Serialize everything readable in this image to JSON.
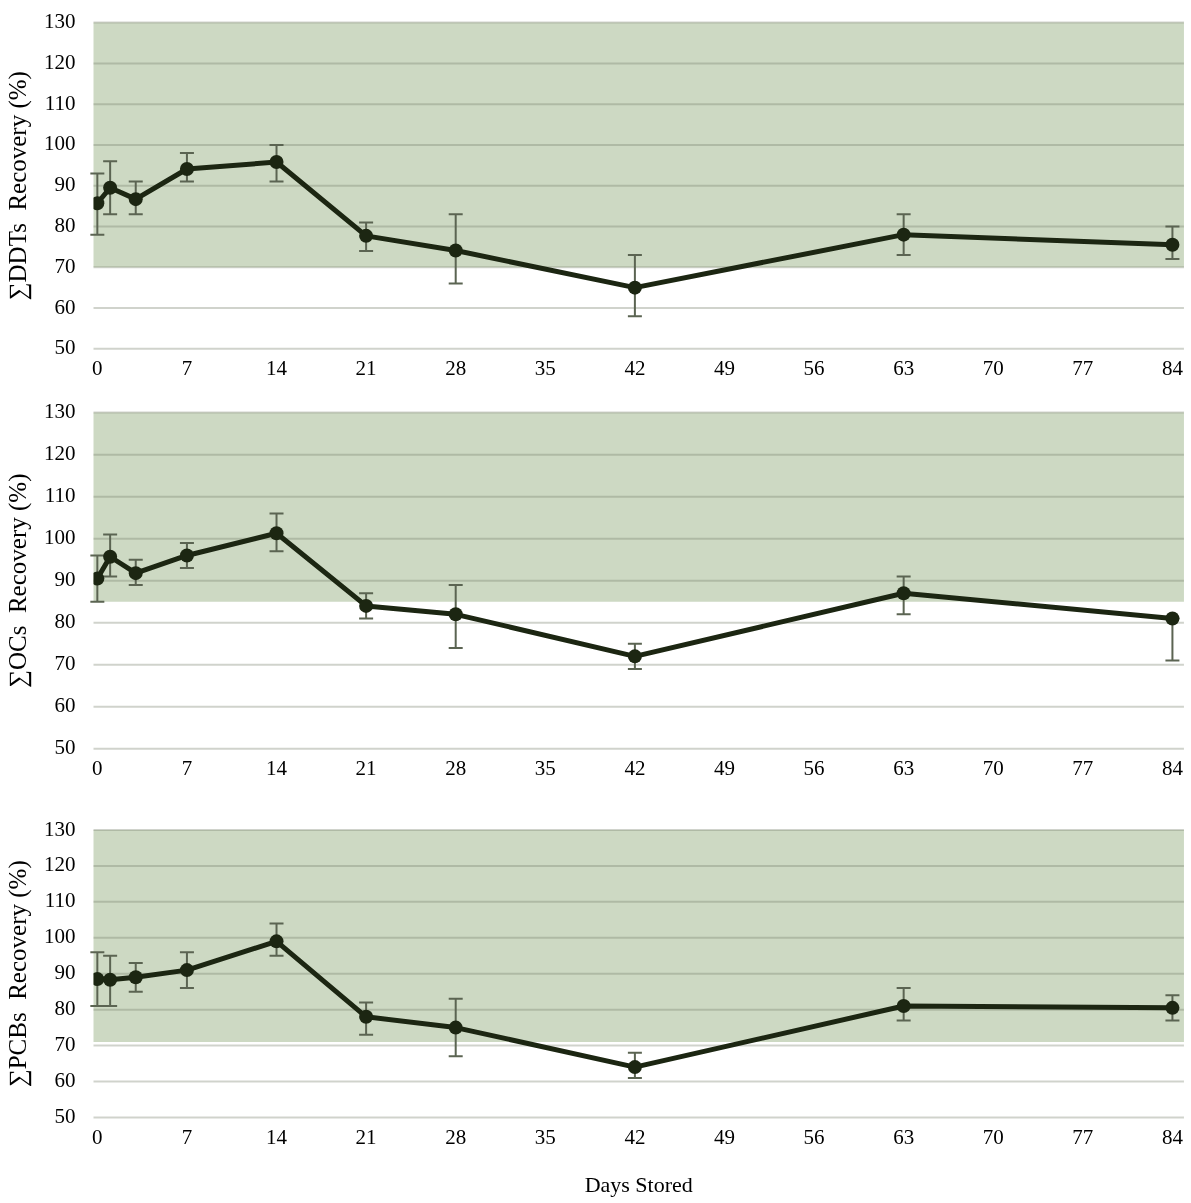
{
  "chart_data": [
    {
      "type": "line",
      "ylabel": "∑DDTs  Recovery (%)",
      "x": [
        0,
        1,
        3,
        7,
        14,
        21,
        28,
        42,
        63,
        84
      ],
      "xlim": [
        -0.3,
        84.9
      ],
      "xticks": [
        0,
        7,
        14,
        21,
        28,
        35,
        42,
        49,
        56,
        63,
        70,
        77,
        84
      ],
      "ylim": [
        50,
        130
      ],
      "yticks": [
        50,
        60,
        70,
        80,
        90,
        100,
        110,
        120,
        130
      ],
      "grid": "y",
      "marker": "circle",
      "bands": [
        {
          "axis": "y",
          "from": 70,
          "to": 130,
          "color": "#cdd9c3"
        }
      ],
      "series": [
        {
          "color": "#1c2612",
          "values": [
            85.7,
            89.5,
            86.7,
            94.1,
            95.8,
            77.7,
            74.1,
            65,
            78,
            75.5
          ],
          "errors": [
            [
              78,
              93
            ],
            [
              83,
              96
            ],
            [
              83,
              91
            ],
            [
              91,
              98
            ],
            [
              91,
              100
            ],
            [
              74,
              81
            ],
            [
              66,
              83
            ],
            [
              58,
              73
            ],
            [
              73,
              83
            ],
            [
              72,
              80
            ]
          ]
        }
      ]
    },
    {
      "type": "line",
      "ylabel": "∑OCs  Recovery (%)",
      "x": [
        0,
        1,
        3,
        7,
        14,
        21,
        28,
        42,
        63,
        84
      ],
      "xlim": [
        -0.3,
        84.9
      ],
      "xticks": [
        0,
        7,
        14,
        21,
        28,
        35,
        42,
        49,
        56,
        63,
        70,
        77,
        84
      ],
      "ylim": [
        50,
        130
      ],
      "yticks": [
        50,
        60,
        70,
        80,
        90,
        100,
        110,
        120,
        130
      ],
      "grid": "y",
      "marker": "circle",
      "bands": [
        {
          "axis": "y",
          "from": 85,
          "to": 130,
          "color": "#cdd9c3"
        }
      ],
      "series": [
        {
          "color": "#1c2612",
          "values": [
            90.5,
            95.7,
            91.8,
            96,
            101.3,
            84,
            82,
            72,
            87,
            81
          ],
          "errors": [
            [
              85,
              96
            ],
            [
              91,
              101
            ],
            [
              89,
              95
            ],
            [
              93,
              99
            ],
            [
              97,
              106
            ],
            [
              81,
              87
            ],
            [
              74,
              89
            ],
            [
              69,
              75
            ],
            [
              82,
              91
            ],
            [
              71,
              81
            ]
          ]
        }
      ]
    },
    {
      "type": "line",
      "ylabel": "∑PCBs  Recovery (%)",
      "xlabel": "Days Stored",
      "x": [
        0,
        1,
        3,
        7,
        14,
        21,
        28,
        42,
        63,
        84
      ],
      "xlim": [
        -0.3,
        84.9
      ],
      "xticks": [
        0,
        7,
        14,
        21,
        28,
        35,
        42,
        49,
        56,
        63,
        70,
        77,
        84
      ],
      "ylim": [
        50,
        130
      ],
      "yticks": [
        50,
        60,
        70,
        80,
        90,
        100,
        110,
        120,
        130
      ],
      "grid": "y",
      "marker": "circle",
      "bands": [
        {
          "axis": "y",
          "from": 71,
          "to": 130,
          "color": "#cdd9c3"
        }
      ],
      "series": [
        {
          "color": "#1c2612",
          "values": [
            88.5,
            88.3,
            89,
            91,
            99,
            78,
            75,
            64,
            81,
            80.5
          ],
          "errors": [
            [
              81,
              96
            ],
            [
              81,
              95
            ],
            [
              85,
              93
            ],
            [
              86,
              96
            ],
            [
              95,
              104
            ],
            [
              73,
              82
            ],
            [
              67,
              83
            ],
            [
              61,
              68
            ],
            [
              77,
              86
            ],
            [
              77,
              84
            ]
          ]
        }
      ]
    }
  ]
}
